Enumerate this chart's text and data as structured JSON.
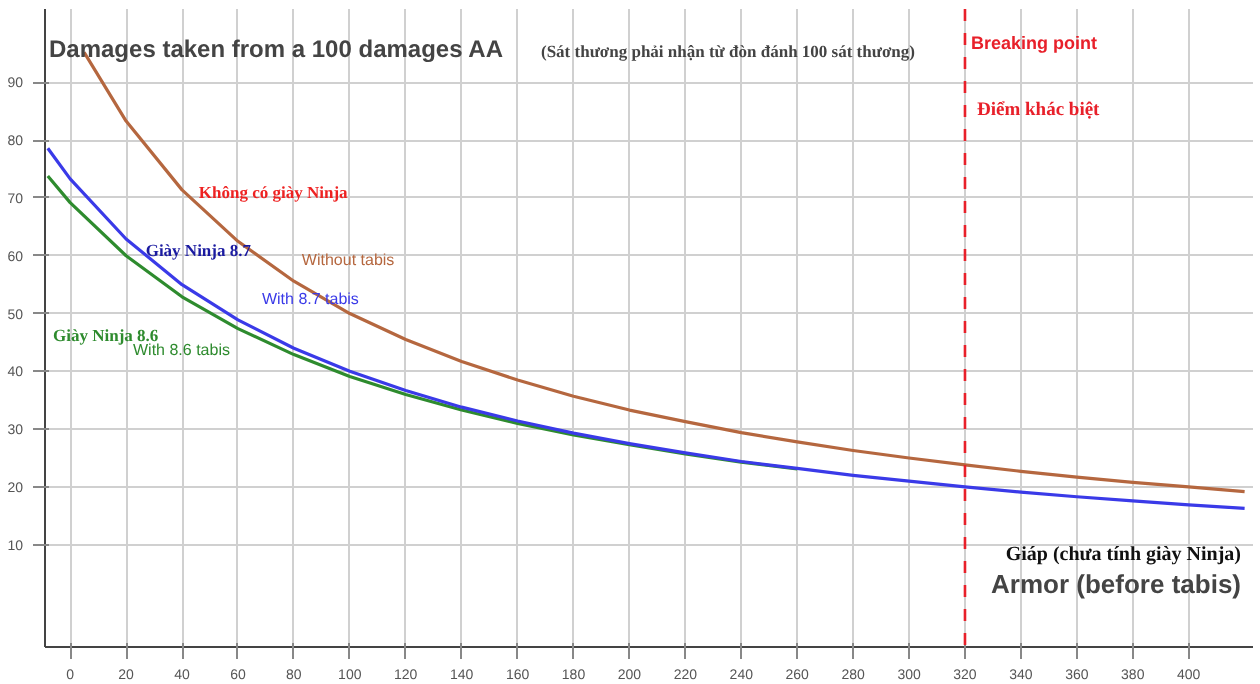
{
  "chart_data": {
    "type": "line",
    "title": "Damages taken from a 100 damages AA",
    "subtitle": "(Sát thương phải nhận từ đòn đánh 100 sát thương)",
    "xlabel": "Armor (before tabis)",
    "series": [
      {
        "name": "Without tabis",
        "color": "#b5673f",
        "x": [
          5,
          20,
          40,
          60,
          80,
          100,
          120,
          140,
          160,
          180,
          200,
          220,
          240,
          260,
          280,
          300,
          320,
          340,
          360,
          380,
          400,
          420
        ],
        "values": [
          95.2,
          83.3,
          71.4,
          62.5,
          55.6,
          50,
          45.5,
          41.7,
          38.5,
          35.7,
          33.3,
          31.3,
          29.4,
          27.8,
          26.3,
          25,
          23.8,
          22.7,
          21.7,
          20.8,
          20,
          19.2
        ]
      },
      {
        "name": "With 8.6 tabis",
        "color": "#2e8b2e",
        "x": [
          -8,
          0,
          20,
          40,
          60,
          80,
          100,
          120,
          140,
          160,
          180,
          200,
          220,
          240,
          260
        ],
        "values": [
          73.8,
          69.2,
          60,
          52.9,
          47.4,
          42.9,
          39.1,
          36,
          33.3,
          31,
          29,
          27.3,
          25.7,
          24.3,
          23.1
        ]
      },
      {
        "name": "With 8.7 tabis",
        "color": "#3a3ae8",
        "x": [
          -8,
          0,
          20,
          40,
          60,
          80,
          100,
          120,
          140,
          160,
          180,
          200,
          220,
          240,
          260,
          280,
          300,
          320,
          340,
          360,
          380,
          400,
          420
        ],
        "values": [
          78.6,
          73.3,
          62.9,
          55,
          48.9,
          44,
          40,
          36.7,
          33.8,
          31.4,
          29.3,
          27.5,
          25.9,
          24.4,
          23.2,
          22,
          21,
          20,
          19.1,
          18.3,
          17.6,
          16.9,
          16.3
        ]
      }
    ],
    "annotations": [
      {
        "text": "Không có giày Ninja",
        "x": 46,
        "y": 71
      },
      {
        "text": "Giày Ninja 8.7",
        "x": 27,
        "y": 61
      },
      "Giày Ninja 8.6",
      "Điểm khác biệt",
      "Giáp (chưa tính giày Ninja)"
    ],
    "ref_lines": [
      {
        "axis": "x",
        "value": 320,
        "label": "Breaking point",
        "color": "#e8202a",
        "line_style": "dashed"
      }
    ],
    "xlim": [
      -9,
      423
    ],
    "ylim": [
      -7.7,
      102.7
    ],
    "xticks": [
      0,
      20,
      40,
      60,
      80,
      100,
      120,
      140,
      160,
      180,
      200,
      220,
      240,
      260,
      280,
      300,
      320,
      340,
      360,
      380,
      400
    ],
    "yticks": [
      10,
      20,
      30,
      40,
      50,
      60,
      70,
      80,
      90
    ],
    "grid": true,
    "legend": false,
    "line_style": "solid",
    "marker": "none"
  }
}
